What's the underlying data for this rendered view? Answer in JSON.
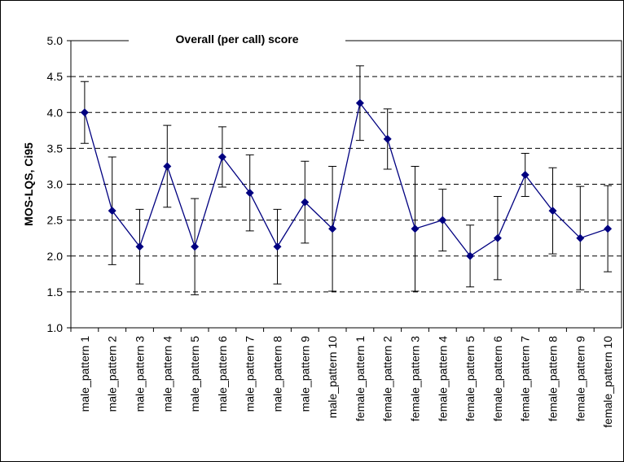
{
  "chart_data": {
    "type": "line",
    "title": "Overall (per call) score",
    "y_label": "MOS-LQS, Ci95",
    "categories": [
      "male_pattern 1",
      "male_pattern 2",
      "male_pattern 3",
      "male_pattern 4",
      "male_pattern 5",
      "male_pattern 6",
      "male_pattern 7",
      "male_pattern 8",
      "male_pattern 9",
      "male_pattern 10",
      "female_pattern 1",
      "female_pattern 2",
      "female_pattern 3",
      "female_pattern 4",
      "female_pattern 5",
      "female_pattern 6",
      "female_pattern 7",
      "female_pattern 8",
      "female_pattern 9",
      "female_pattern 10"
    ],
    "values": [
      4.0,
      2.63,
      2.13,
      3.25,
      2.13,
      3.38,
      2.88,
      2.13,
      2.75,
      2.38,
      4.13,
      3.63,
      2.38,
      2.5,
      2.0,
      2.25,
      3.13,
      2.63,
      2.25,
      2.38
    ],
    "errors": [
      0.43,
      0.75,
      0.52,
      0.57,
      0.67,
      0.42,
      0.53,
      0.52,
      0.57,
      0.87,
      0.52,
      0.42,
      0.87,
      0.43,
      0.43,
      0.58,
      0.3,
      0.6,
      0.72,
      0.6
    ],
    "color": "#000080",
    "ylim": [
      1.0,
      5.0
    ],
    "yticks": [
      {
        "value": 1.0,
        "label": "1.0"
      },
      {
        "value": 1.5,
        "label": "1.5"
      },
      {
        "value": 2.0,
        "label": "2.0"
      },
      {
        "value": 2.5,
        "label": "2.5"
      },
      {
        "value": 3.0,
        "label": "3.0"
      },
      {
        "value": 3.5,
        "label": "3.5"
      },
      {
        "value": 4.0,
        "label": "4.0"
      },
      {
        "value": 4.5,
        "label": "4.5"
      },
      {
        "value": 5.0,
        "label": "5.0"
      }
    ],
    "grid": true
  }
}
